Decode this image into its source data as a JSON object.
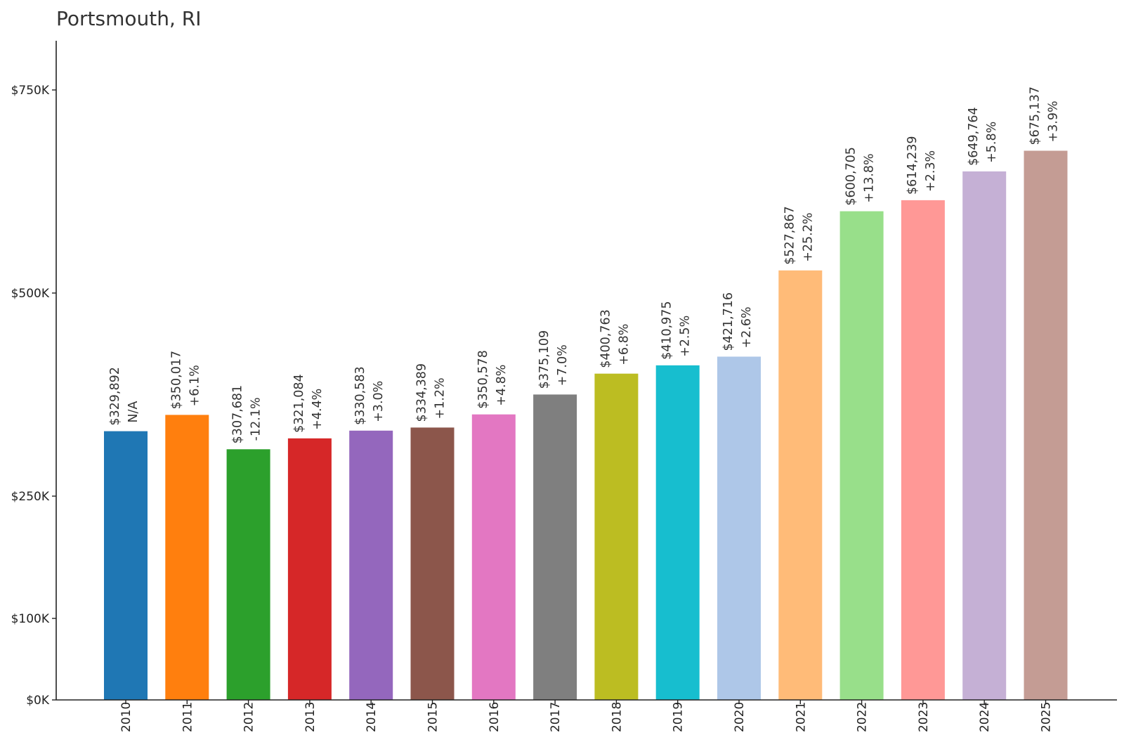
{
  "chart_data": {
    "type": "bar",
    "title": "Portsmouth, RI",
    "xlabel": "",
    "ylabel": "",
    "grid": false,
    "legend": "none",
    "categories": [
      "2010",
      "2011",
      "2012",
      "2013",
      "2014",
      "2015",
      "2016",
      "2017",
      "2018",
      "2019",
      "2020",
      "2021",
      "2022",
      "2023",
      "2024",
      "2025"
    ],
    "values": [
      329892,
      350017,
      307681,
      321084,
      330583,
      334389,
      350578,
      375109,
      400763,
      410975,
      421716,
      527867,
      600705,
      614239,
      649764,
      675137
    ],
    "value_labels": [
      "$329,892",
      "$350,017",
      "$307,681",
      "$321,084",
      "$330,583",
      "$334,389",
      "$350,578",
      "$375,109",
      "$400,763",
      "$410,975",
      "$421,716",
      "$527,867",
      "$600,705",
      "$614,239",
      "$649,764",
      "$675,137"
    ],
    "change_labels": [
      "N/A",
      "+6.1%",
      "-12.1%",
      "+4.4%",
      "+3.0%",
      "+1.2%",
      "+4.8%",
      "+7.0%",
      "+6.8%",
      "+2.5%",
      "+2.6%",
      "+25.2%",
      "+13.8%",
      "+2.3%",
      "+5.8%",
      "+3.9%"
    ],
    "colors": [
      "#1f77b4",
      "#ff7f0e",
      "#2ca02c",
      "#d62728",
      "#9467bd",
      "#8c564b",
      "#e377c2",
      "#7f7f7f",
      "#bcbd22",
      "#17becf",
      "#aec7e8",
      "#ffbb78",
      "#98df8a",
      "#ff9896",
      "#c5b0d5",
      "#c49c94"
    ],
    "yticks": [
      0,
      100000,
      250000,
      500000,
      750000
    ],
    "ytick_labels": [
      "$0K",
      "$100K",
      "$250K",
      "$500K",
      "$750K"
    ],
    "ylim": [
      0,
      810000
    ]
  }
}
